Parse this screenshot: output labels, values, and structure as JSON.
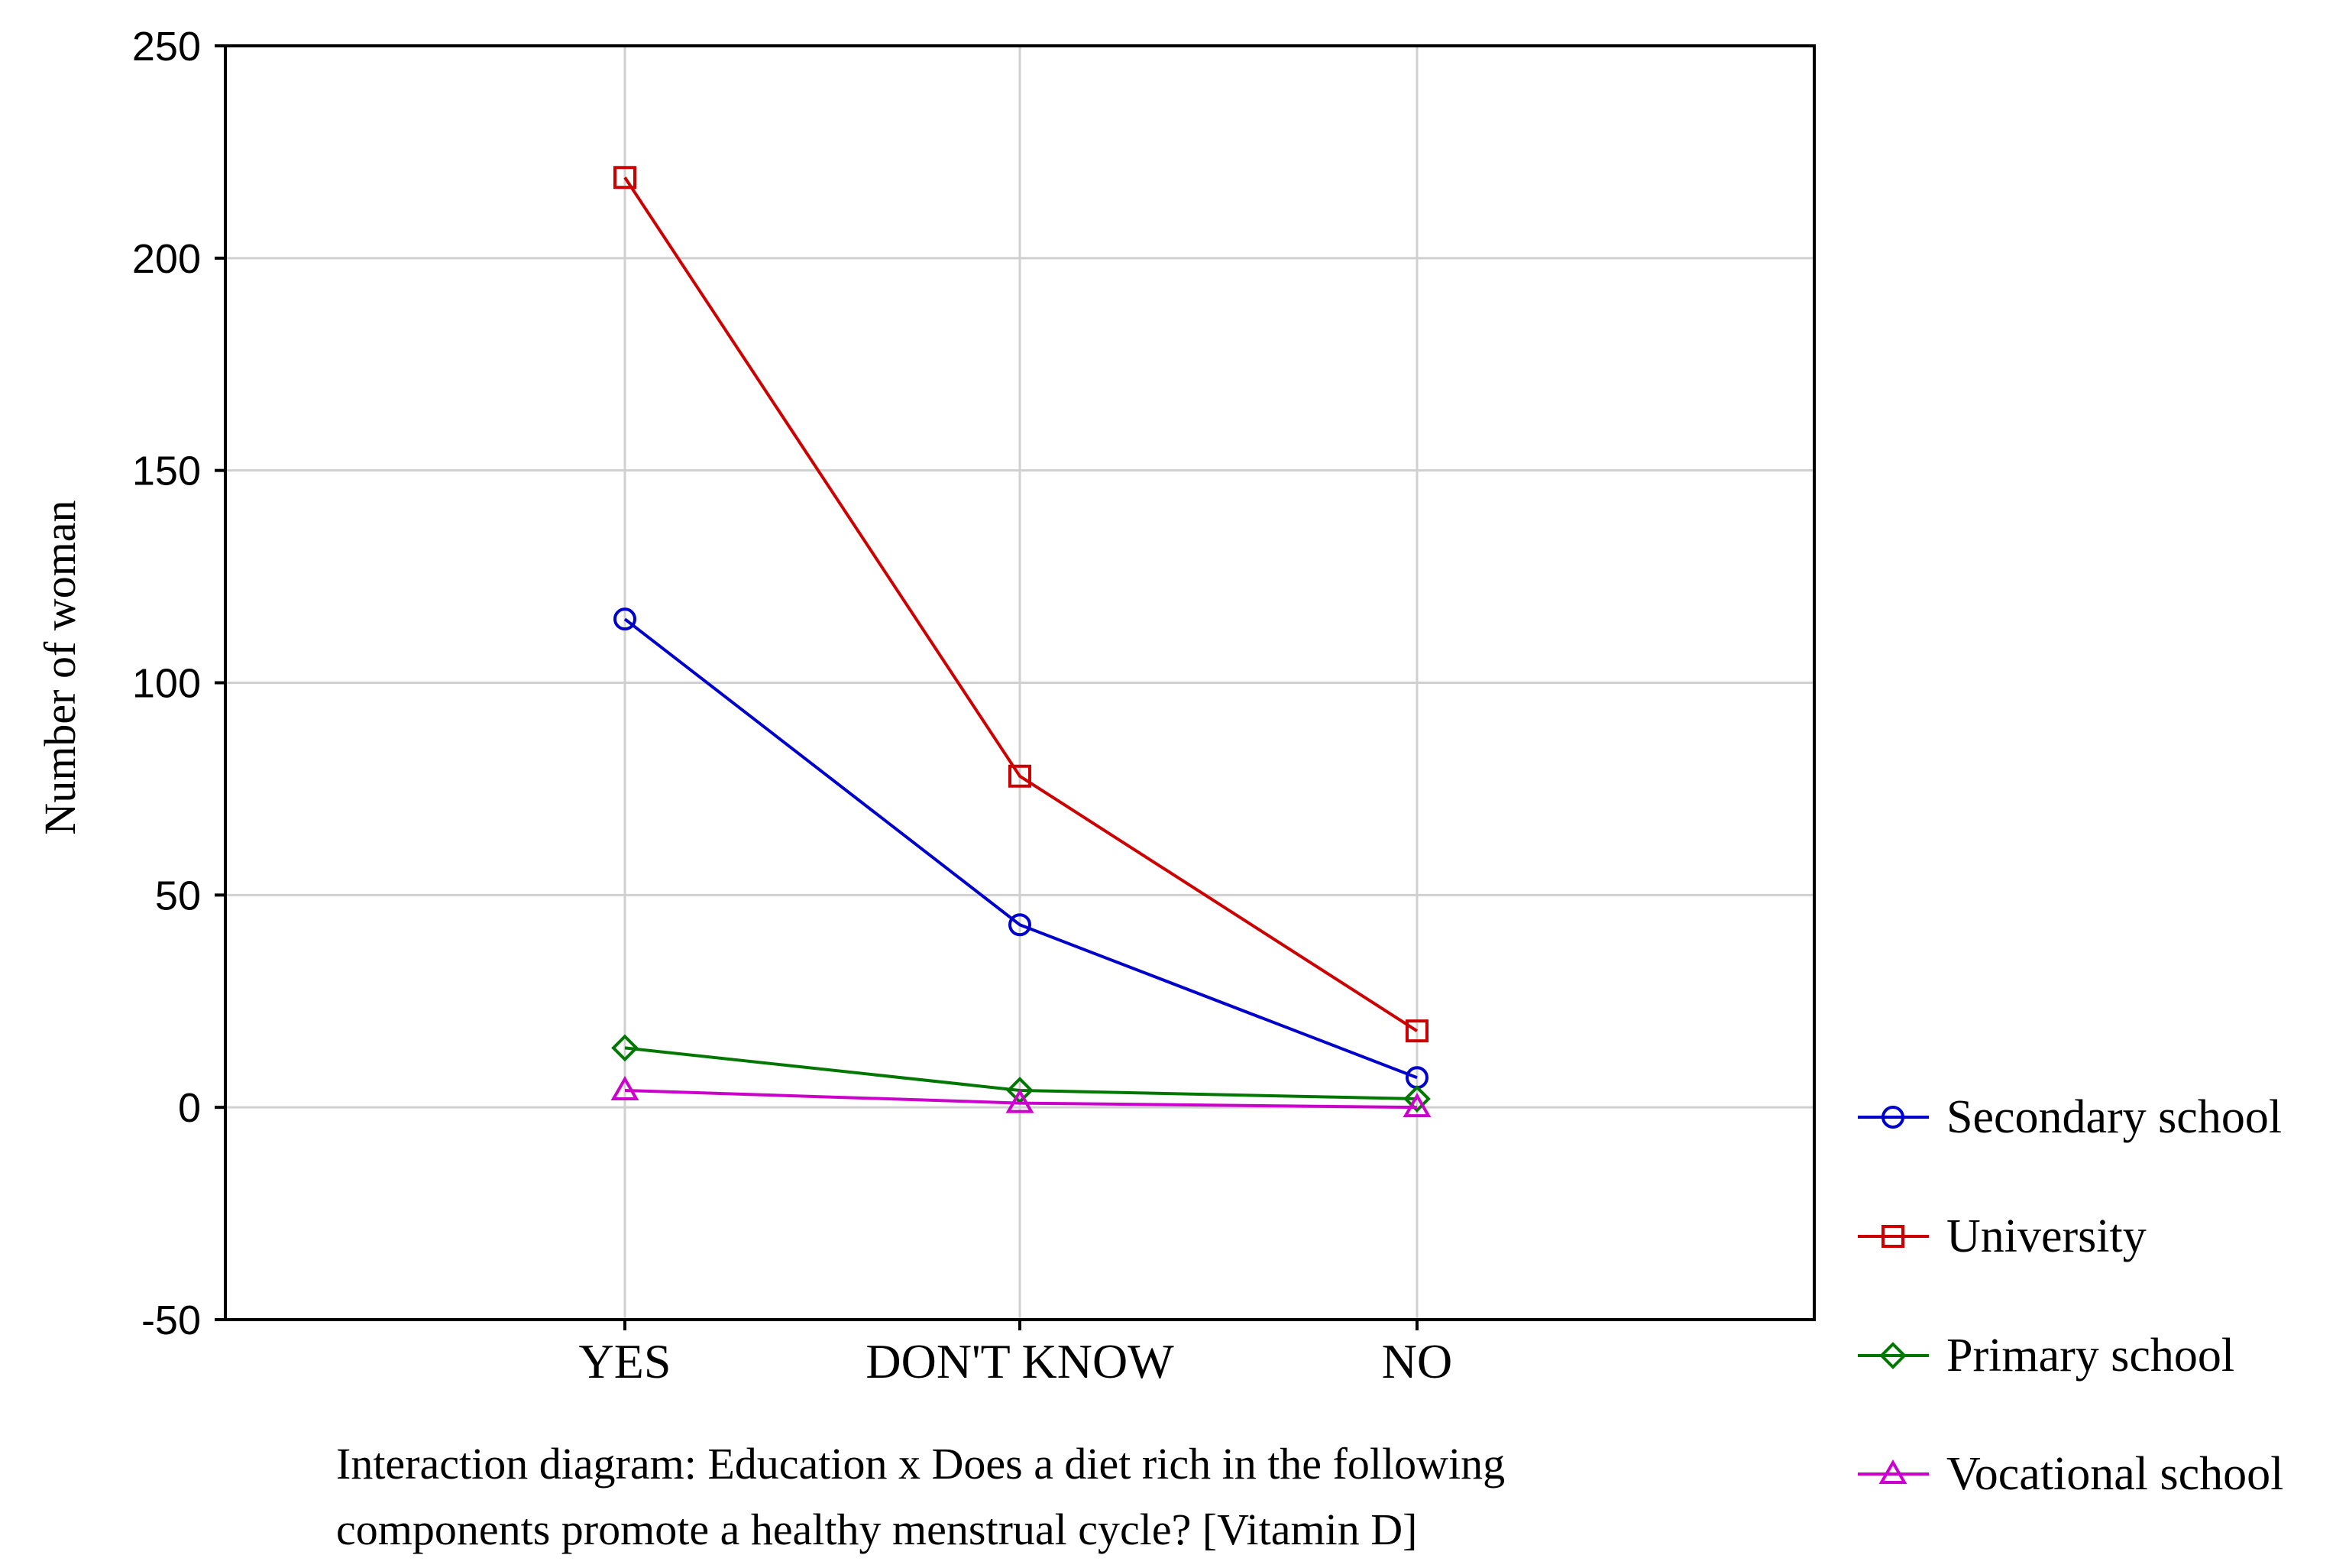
{
  "chart_data": {
    "type": "line",
    "categories": [
      "YES",
      "DON'T KNOW",
      "NO"
    ],
    "series": [
      {
        "name": "Secondary school",
        "values": [
          115,
          43,
          7
        ],
        "color": "#0000cc",
        "marker": "circle"
      },
      {
        "name": "University",
        "values": [
          219,
          78,
          18
        ],
        "color": "#cc0000",
        "marker": "square"
      },
      {
        "name": "Primary school",
        "values": [
          14,
          4,
          2
        ],
        "color": "#007700",
        "marker": "diamond"
      },
      {
        "name": "Vocational school",
        "values": [
          4,
          1,
          0
        ],
        "color": "#cc00cc",
        "marker": "triangle"
      }
    ],
    "ylabel": "Number of woman",
    "xlabel": "",
    "ylim": [
      -50,
      250
    ],
    "yticks": [
      -50,
      0,
      50,
      100,
      150,
      200,
      250
    ],
    "grid": true,
    "legend_position": "bottom-right outside",
    "caption_lines": [
      "Interaction diagram: Education x Does a diet rich in the following",
      "components promote a healthy menstrual cycle? [Vitamin D]"
    ]
  }
}
